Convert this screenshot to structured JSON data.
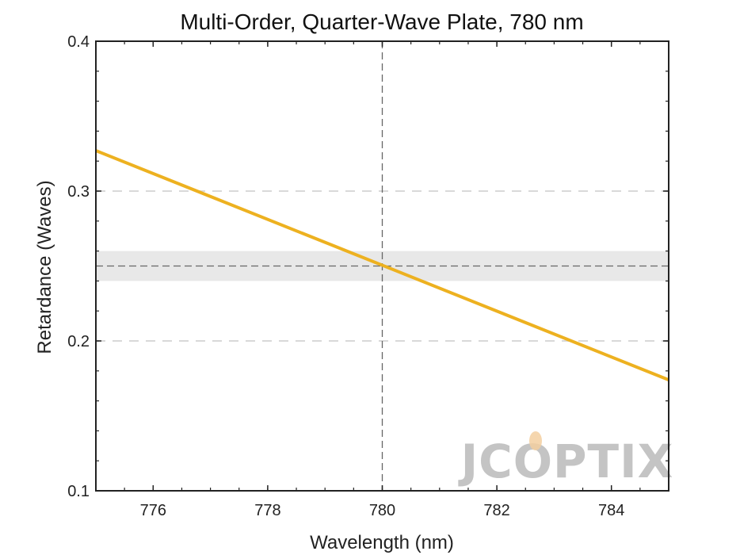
{
  "chart_data": {
    "type": "line",
    "title": "Multi-Order, Quarter-Wave Plate, 780 nm",
    "xlabel": "Wavelength (nm)",
    "ylabel": "Retardance (Waves)",
    "xlim": [
      775,
      785
    ],
    "ylim": [
      0.1,
      0.4
    ],
    "x_ticks": [
      776,
      778,
      780,
      782,
      784
    ],
    "y_ticks": [
      0.1,
      0.2,
      0.3,
      0.4
    ],
    "x_tick_labels": [
      "776",
      "778",
      "780",
      "782",
      "784"
    ],
    "y_tick_labels": [
      "0.1",
      "0.2",
      "0.3",
      "0.4"
    ],
    "grid": "dashed horizontal at 0.2 and 0.3",
    "target_band": {
      "low": 0.24,
      "high": 0.26,
      "center": 0.25
    },
    "design_wavelength": 780,
    "series": [
      {
        "x": [
          775,
          785
        ],
        "y": [
          0.327,
          0.174
        ],
        "color": "#EDB120"
      }
    ],
    "watermark": "JCOPTIX",
    "colors": {
      "line": "#EDB120",
      "band": "#e8e8e8",
      "reference": "#666666",
      "grid": "#d9d9d9",
      "axes": "#222222"
    }
  }
}
